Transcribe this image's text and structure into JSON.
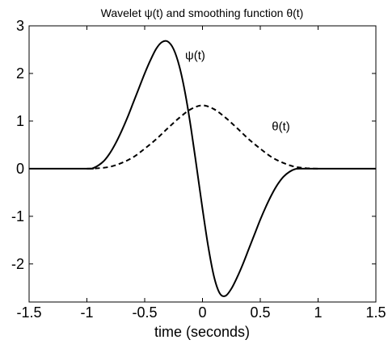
{
  "chart_data": {
    "type": "line",
    "title": "Wavelet ψ(t) and smoothing function θ(t)",
    "xlabel": "time (seconds)",
    "ylabel": "",
    "xlim": [
      -1.5,
      1.5
    ],
    "ylim": [
      -2.8,
      3.0
    ],
    "xticks": [
      -1.5,
      -1,
      -0.5,
      0,
      0.5,
      1,
      1.5
    ],
    "xtick_labels": [
      "-1.5",
      "-1",
      "-0.5",
      "0",
      "0.5",
      "1",
      "1.5"
    ],
    "yticks": [
      3,
      2,
      1,
      0,
      -1,
      -2
    ],
    "ytick_labels": [
      "3",
      "2",
      "1",
      "0",
      "-1",
      "-2"
    ],
    "grid": false,
    "legend": "none",
    "series": [
      {
        "name": "ψ(t)",
        "style": "solid",
        "color": "#000000",
        "x": [
          -1.5,
          -1.0,
          -0.95,
          -0.9,
          -0.85,
          -0.8,
          -0.75,
          -0.7,
          -0.65,
          -0.6,
          -0.55,
          -0.5,
          -0.45,
          -0.4,
          -0.35,
          -0.3,
          -0.25,
          -0.2,
          -0.15,
          -0.1,
          -0.05,
          0.0,
          0.05,
          0.1,
          0.15,
          0.2,
          0.25,
          0.3,
          0.35,
          0.4,
          0.45,
          0.5,
          0.55,
          0.6,
          0.65,
          0.7,
          0.75,
          0.8,
          0.85,
          0.9,
          0.95,
          1.0,
          1.5
        ],
        "y": [
          0.0,
          0.0,
          0.01,
          0.07,
          0.17,
          0.33,
          0.54,
          0.79,
          1.07,
          1.38,
          1.69,
          2.0,
          2.28,
          2.52,
          2.66,
          2.67,
          2.51,
          2.15,
          1.59,
          0.86,
          0.02,
          -0.84,
          -1.64,
          -2.27,
          -2.62,
          -2.67,
          -2.52,
          -2.28,
          -2.0,
          -1.69,
          -1.38,
          -1.07,
          -0.79,
          -0.54,
          -0.33,
          -0.17,
          -0.07,
          -0.01,
          0.0,
          0.0,
          0.0,
          0.0,
          0.0
        ]
      },
      {
        "name": "θ(t)",
        "style": "dashed",
        "color": "#000000",
        "x": [
          -1.0,
          -0.9,
          -0.8,
          -0.7,
          -0.6,
          -0.5,
          -0.4,
          -0.3,
          -0.2,
          -0.1,
          0.0,
          0.1,
          0.2,
          0.3,
          0.4,
          0.5,
          0.6,
          0.7,
          0.8,
          0.9,
          1.0
        ],
        "y": [
          0.0,
          0.01,
          0.04,
          0.12,
          0.24,
          0.42,
          0.62,
          0.85,
          1.07,
          1.25,
          1.33,
          1.25,
          1.07,
          0.85,
          0.62,
          0.42,
          0.24,
          0.12,
          0.04,
          0.01,
          0.0
        ]
      }
    ],
    "annotations": [
      {
        "text": "ψ(t)",
        "x": -0.15,
        "y": 2.3
      },
      {
        "text": "θ(t)",
        "x": 0.6,
        "y": 0.8
      }
    ]
  }
}
